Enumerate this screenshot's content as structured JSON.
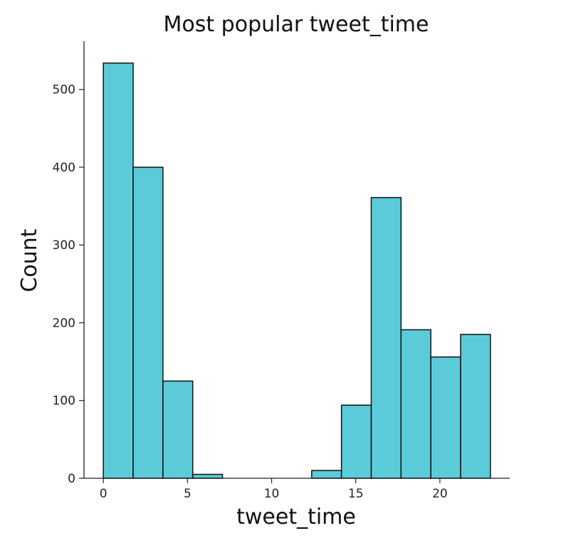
{
  "chart_data": {
    "type": "bar",
    "title": "Most popular tweet_time",
    "xlabel": "tweet_time",
    "ylabel": "Count",
    "bar_color": "#5bcbd9",
    "edge_color": "#111111",
    "xlim": [
      -1.15,
      24.15
    ],
    "ylim": [
      0,
      562
    ],
    "xticks": [
      0,
      5,
      10,
      15,
      20
    ],
    "yticks": [
      0,
      100,
      200,
      300,
      400,
      500
    ],
    "bins": [
      {
        "x0": 0.0,
        "x1": 1.77,
        "count": 534
      },
      {
        "x0": 1.77,
        "x1": 3.54,
        "count": 400
      },
      {
        "x0": 3.54,
        "x1": 5.31,
        "count": 125
      },
      {
        "x0": 5.31,
        "x1": 7.08,
        "count": 5
      },
      {
        "x0": 7.08,
        "x1": 8.85,
        "count": 0
      },
      {
        "x0": 8.85,
        "x1": 10.62,
        "count": 0
      },
      {
        "x0": 10.62,
        "x1": 12.38,
        "count": 0
      },
      {
        "x0": 12.38,
        "x1": 14.15,
        "count": 10
      },
      {
        "x0": 14.15,
        "x1": 15.92,
        "count": 94
      },
      {
        "x0": 15.92,
        "x1": 17.69,
        "count": 361
      },
      {
        "x0": 17.69,
        "x1": 19.46,
        "count": 191
      },
      {
        "x0": 19.46,
        "x1": 21.23,
        "count": 156
      },
      {
        "x0": 21.23,
        "x1": 23.0,
        "count": 185
      }
    ],
    "grid": false,
    "spines": [
      "left",
      "bottom"
    ]
  }
}
